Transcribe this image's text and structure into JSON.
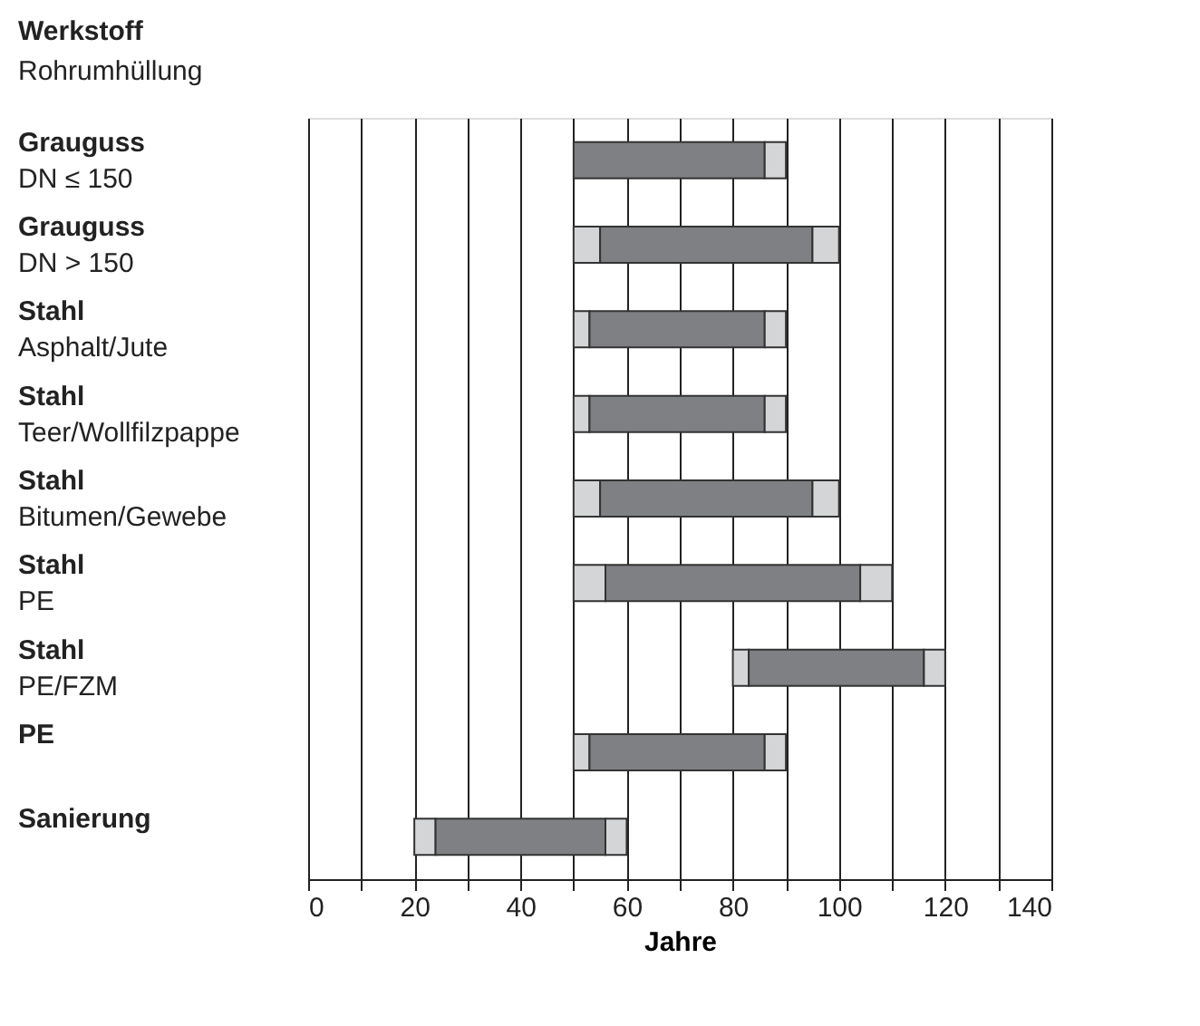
{
  "chart_data": {
    "type": "bar",
    "orientation": "horizontal",
    "ylabel": "Werkstoff\nRohrumhüllung",
    "xlabel": "Jahre",
    "categories": [
      "Grauguss\nDN ≤ 150",
      "Grauguss\nDN > 150",
      "Stahl\nAsphalt/Jute",
      "Stahl\nTeer/Wollfilzpappe",
      "Stahl\nBitumen/Gewebe",
      "Stahl\nPE",
      "Stahl\nPE/FZM",
      "PE",
      "Sanierung"
    ],
    "series": [
      {
        "color": "#d4d5d6",
        "base": [
          null,
          50,
          50,
          50,
          50,
          50,
          80,
          50,
          20
        ],
        "values": [
          null,
          5,
          3,
          3,
          5,
          6,
          3,
          3,
          4
        ]
      },
      {
        "color": "#7f8083",
        "base": [
          50,
          55,
          53,
          53,
          55,
          56,
          83,
          53,
          24
        ],
        "values": [
          36,
          40,
          33,
          33,
          40,
          48,
          33,
          33,
          32
        ]
      },
      {
        "color": "#d4d5d6",
        "base": [
          86,
          95,
          86,
          86,
          95,
          104,
          116,
          86,
          56
        ],
        "values": [
          4,
          5,
          4,
          4,
          5,
          6,
          4,
          4,
          4
        ]
      }
    ],
    "xlim": [
      0,
      140
    ],
    "xticks": [
      0,
      {
        "value": 10,
        "label": null
      },
      20,
      {
        "value": 30,
        "label": null
      },
      40,
      {
        "value": 50,
        "label": null
      },
      60,
      {
        "value": 70,
        "label": null
      },
      80,
      {
        "value": 90,
        "label": null
      },
      100,
      {
        "value": 110,
        "label": null
      },
      120,
      {
        "value": 130,
        "label": null
      },
      140
    ],
    "grid": "x"
  }
}
